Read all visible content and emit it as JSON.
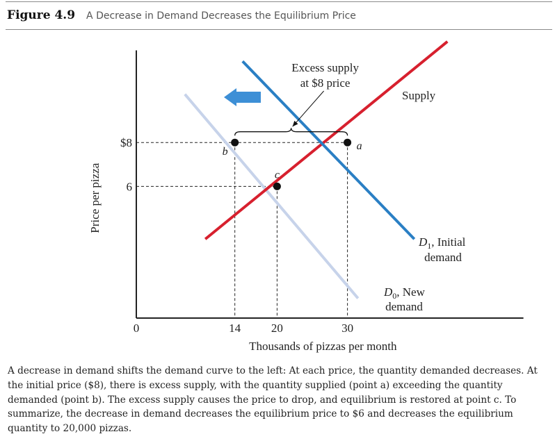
{
  "figure": {
    "number": "Figure 4.9",
    "title": "A Decrease in Demand Decreases the Equilibrium Price"
  },
  "chart_data": {
    "type": "line",
    "xlabel": "Thousands of pizzas per month",
    "ylabel": "Price per pizza",
    "xlim": [
      0,
      55
    ],
    "ylim": [
      0,
      12.2
    ],
    "x_ticks": [
      {
        "value": 0,
        "label": "0"
      },
      {
        "value": 14,
        "label": "14"
      },
      {
        "value": 20,
        "label": "20"
      },
      {
        "value": 30,
        "label": "30"
      }
    ],
    "y_ticks": [
      {
        "value": 8,
        "label": "$8"
      },
      {
        "value": 6,
        "label": "6"
      }
    ],
    "series": [
      {
        "id": "supply",
        "name": "Supply",
        "color": "#d7202e",
        "points": [
          [
            9.8,
            3.6
          ],
          [
            44.2,
            12.6
          ]
        ]
      },
      {
        "id": "d1",
        "name": "D1, Initial demand",
        "color": "#2a7fc4",
        "points": [
          [
            15.1,
            11.7
          ],
          [
            39.5,
            3.6
          ]
        ]
      },
      {
        "id": "d0",
        "name": "D0, New demand",
        "color": "#c7d3ea",
        "points": [
          [
            6.9,
            10.2
          ],
          [
            31.5,
            0.9
          ]
        ]
      }
    ],
    "points": [
      {
        "id": "a",
        "label": "a",
        "x": 30,
        "y": 8
      },
      {
        "id": "b",
        "label": "b",
        "x": 14,
        "y": 8
      },
      {
        "id": "c",
        "label": "c",
        "x": 20,
        "y": 6
      }
    ],
    "annotations": {
      "excess_supply_line1": "Excess supply",
      "excess_supply_line2": "at $8 price",
      "supply_label": "Supply",
      "d1_label_prefix": "D",
      "d1_label_sub": "1",
      "d1_label_rest": ", Initial",
      "d1_label_line2": "demand",
      "d0_label_prefix": "D",
      "d0_label_sub": "0",
      "d0_label_rest": ", New",
      "d0_label_line2": "demand"
    },
    "shift_arrow": {
      "direction": "left",
      "color": "#3d8fd6"
    },
    "grid": false
  },
  "caption": "A decrease in demand shifts the demand curve to the left: At each price, the quantity demanded decreases. At the initial price ($8), there is excess supply, with the quantity supplied (point a) exceeding the quantity demanded (point b). The excess supply causes the price to drop, and equilibrium is restored at point c. To summarize, the decrease in demand decreases the equilibrium price to $6 and decreases the equilibrium quantity to 20,000 pizzas."
}
